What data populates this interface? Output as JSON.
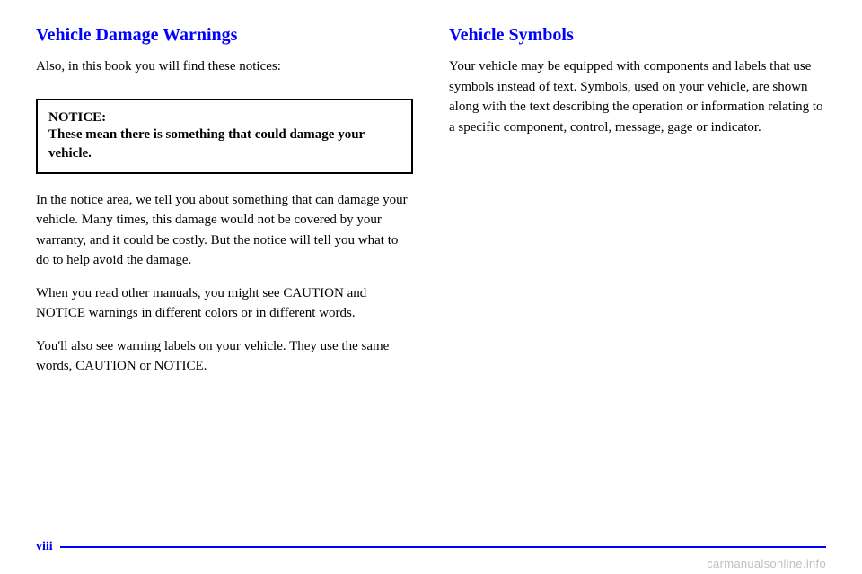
{
  "left": {
    "para1": "In the notice area, we tell you about something that can damage your vehicle. Many times, this damage would not be covered by your warranty, and it could be costly. But the notice will tell you what to do to help avoid the damage.",
    "para2": "When you read other manuals, you might see CAUTION and NOTICE warnings in different colors or in different words.",
    "para3": "You'll also see warning labels on your vehicle. They use the same words, CAUTION or NOTICE.",
    "heading": "Vehicle Damage Warnings",
    "intro": "Also, in this book you will find these notices:",
    "notice_label": "NOTICE:",
    "notice_text": "These mean there is something that could damage your vehicle."
  },
  "right": {
    "heading": "Vehicle Symbols",
    "para1": "Your vehicle may be equipped with components and labels that use symbols instead of text. Symbols, used on your vehicle, are shown along with the text describing the operation or information relating to a specific component, control, message, gage or indicator."
  },
  "footer": {
    "page_num": "viii"
  },
  "watermark": "carmanualsonline.info",
  "colors": {
    "accent": "#0000ff",
    "body_text": "#000000",
    "watermark": "#bfbfbf",
    "background": "#ffffff"
  }
}
